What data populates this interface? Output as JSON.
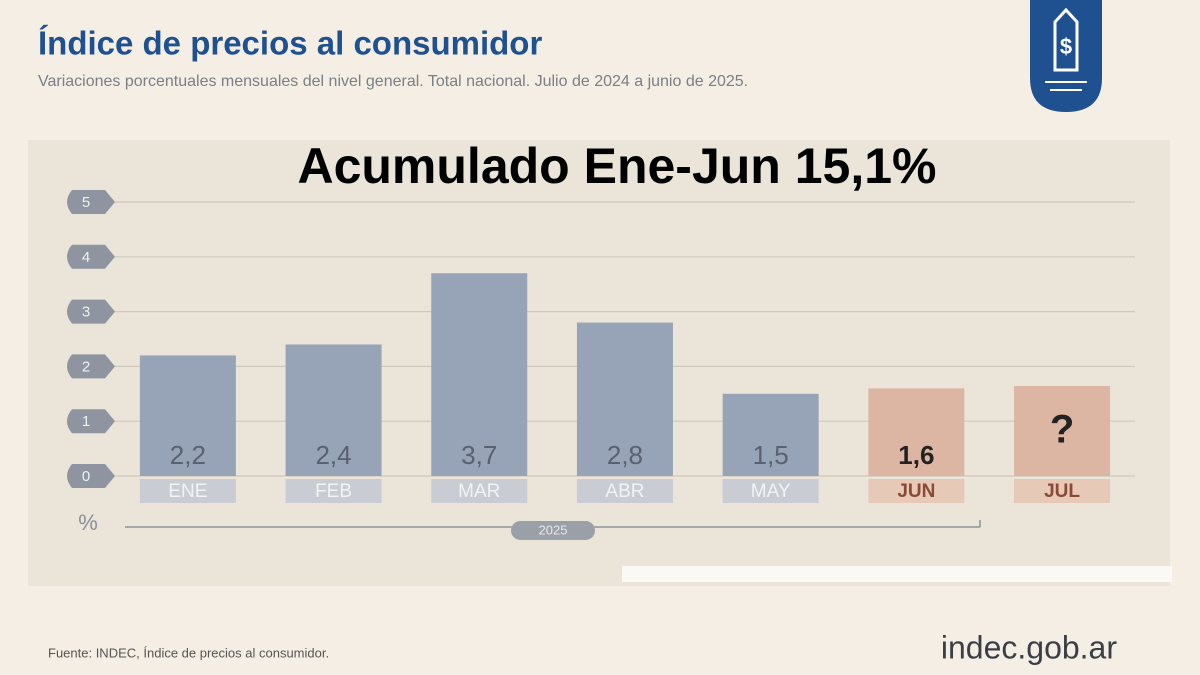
{
  "chart_data": {
    "type": "bar",
    "title": "Índice de precios al consumidor",
    "subtitle": "Variaciones porcentuales mensuales del nivel general. Total nacional. Julio de 2024 a junio de 2025.",
    "annotation": "Acumulado Ene-Jun 15,1%",
    "y_unit": "%",
    "x_group_label": "2025",
    "source": "Fuente: INDEC, Índice de precios al consumidor.",
    "brand": "indec.gob.ar",
    "categories": [
      "ENE",
      "FEB",
      "MAR",
      "ABR",
      "MAY",
      "JUN",
      "JUL"
    ],
    "values": [
      2.2,
      2.4,
      3.7,
      2.8,
      1.5,
      1.6,
      null
    ],
    "value_labels": [
      "2,2",
      "2,4",
      "3,7",
      "2,8",
      "1,5",
      "1,6",
      "?"
    ],
    "colors": [
      "#97a3b6",
      "#97a3b6",
      "#97a3b6",
      "#97a3b6",
      "#97a3b6",
      "#dcb6a2",
      "#dcb6a2"
    ],
    "ylim": [
      0,
      5
    ],
    "yticks": [
      0,
      1,
      2,
      3,
      4,
      5
    ],
    "grid": true
  }
}
